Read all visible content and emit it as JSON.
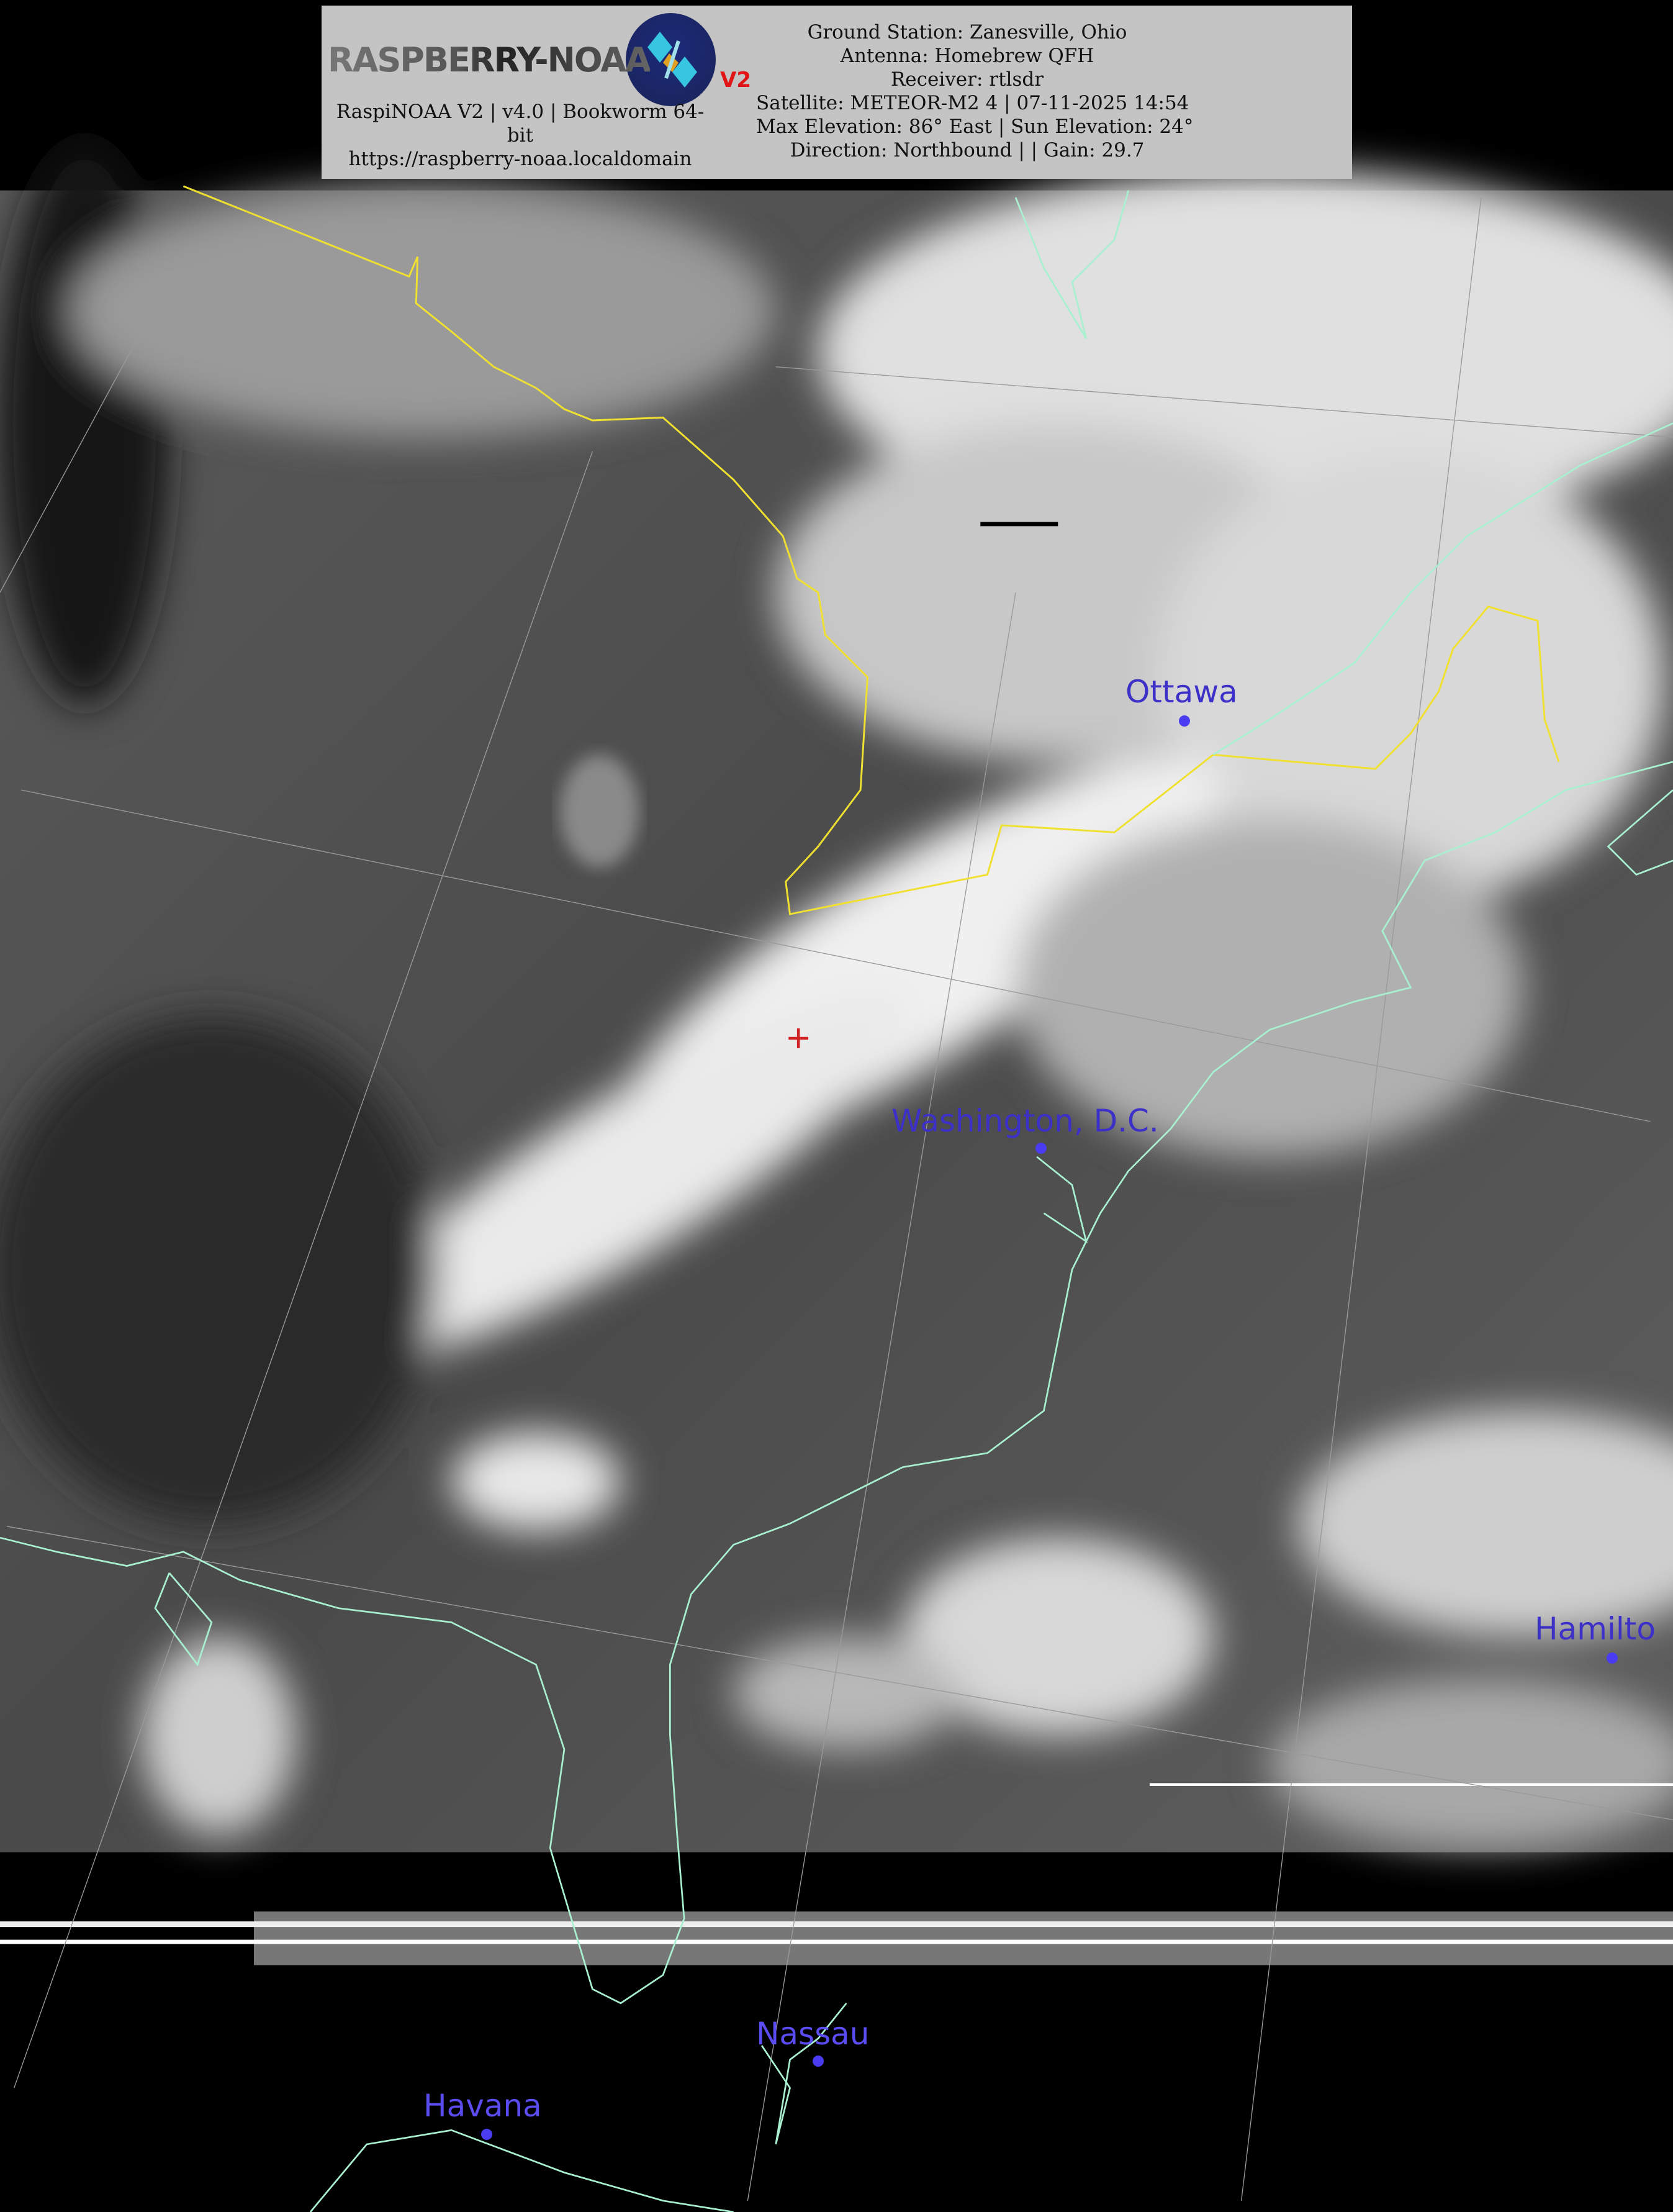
{
  "header": {
    "logo": {
      "text": "RASPBERRY-NOAA",
      "badge": "V2"
    },
    "left_lines": [
      "RaspiNOAA V2 | v4.0 | Bookworm 64-",
      "bit",
      "https://raspberry-noaa.localdomain"
    ],
    "right_lines": [
      "Ground Station: Zanesville, Ohio",
      "Antenna: Homebrew QFH",
      "Receiver: rtlsdr",
      "Satellite: METEOR-M2 4 | 07-11-2025 14:54",
      "Max Elevation: 86° East | Sun Elevation: 24°",
      "Direction: Northbound | | Gain: 29.7"
    ]
  },
  "map": {
    "cities": [
      {
        "name": "Ottawa"
      },
      {
        "name": "Washington, D.C."
      },
      {
        "name": "Hamilto"
      },
      {
        "name": "Nassau"
      },
      {
        "name": "Havana"
      }
    ],
    "colors": {
      "border": "#f0e030",
      "coastline": "#a8f0d0",
      "city_label": "#3d30c8",
      "ground_station_marker": "#d02020"
    }
  }
}
